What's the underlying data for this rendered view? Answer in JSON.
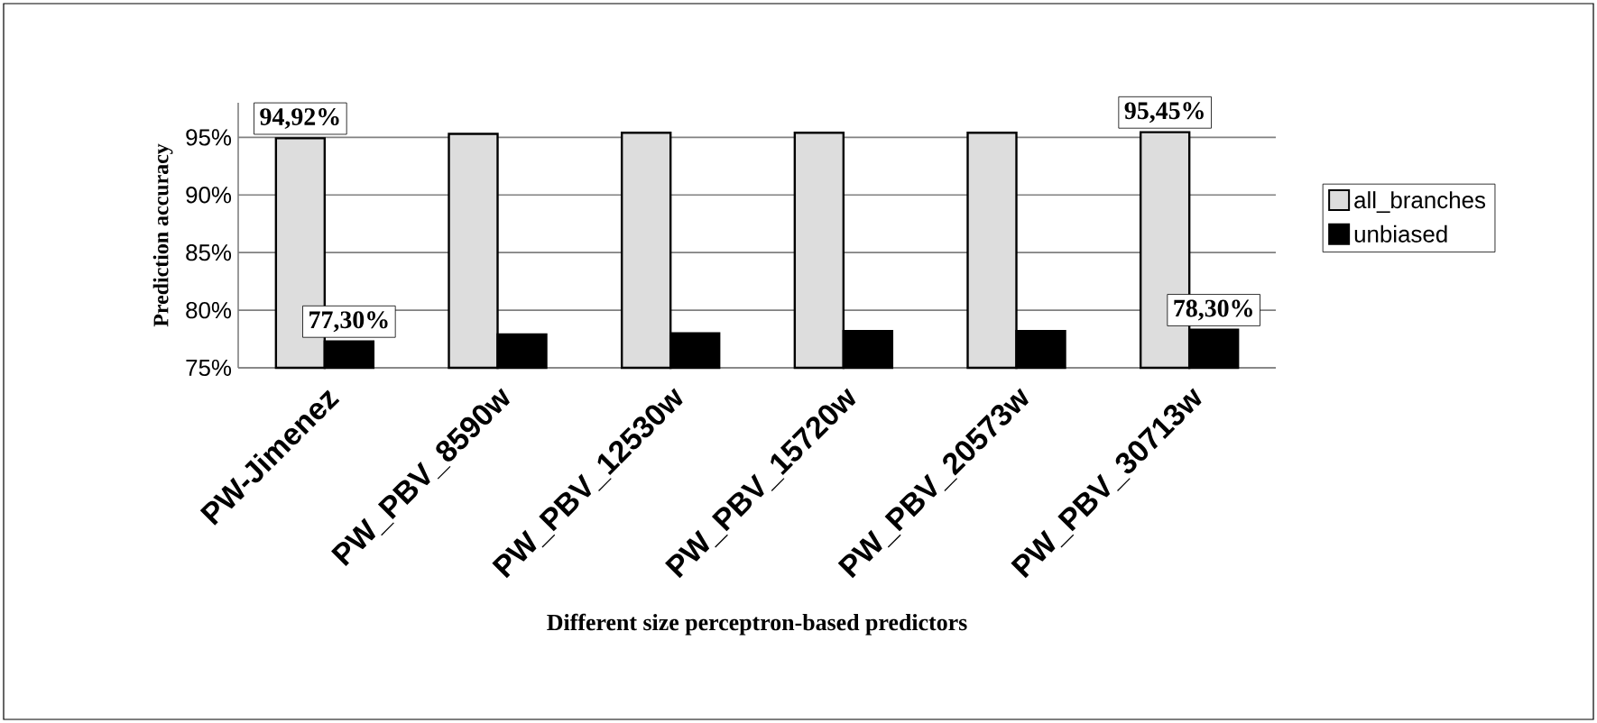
{
  "chart_data": {
    "type": "bar",
    "xlabel": "Different size perceptron-based predictors",
    "ylabel": "Prediction accuracy",
    "categories": [
      "PW-Jimenez",
      "PW_PBV_8590w",
      "PW_PBV_12530w",
      "PW_PBV_15720w",
      "PW_PBV_20573w",
      "PW_PBV_30713w"
    ],
    "series": [
      {
        "name": "all_branches",
        "color": "#dddddd",
        "values": [
          94.92,
          95.3,
          95.4,
          95.4,
          95.4,
          95.45
        ],
        "value_labels": [
          "94,92%",
          null,
          null,
          null,
          null,
          "95,45%"
        ]
      },
      {
        "name": "unbiased",
        "color": "#000000",
        "values": [
          77.3,
          77.9,
          78.0,
          78.2,
          78.2,
          78.3
        ],
        "value_labels": [
          "77,30%",
          null,
          null,
          null,
          null,
          "78,30%"
        ]
      }
    ],
    "ylim": [
      75,
      98
    ],
    "yticks": [
      {
        "value": 75,
        "label": "75%"
      },
      {
        "value": 80,
        "label": "80%"
      },
      {
        "value": 85,
        "label": "85%"
      },
      {
        "value": 90,
        "label": "90%"
      },
      {
        "value": 95,
        "label": "95%"
      }
    ],
    "grid": "y",
    "legend": "right"
  }
}
